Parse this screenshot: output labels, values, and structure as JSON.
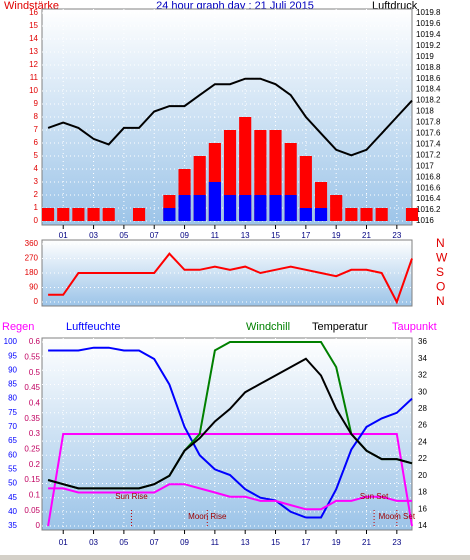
{
  "chart_data": [
    {
      "type": "line",
      "title": "24 hour graph day : 21 Juli 2015",
      "ylabel": "Windstärke",
      "y2label": "Luftdruck",
      "x": [
        0,
        1,
        2,
        3,
        4,
        5,
        6,
        7,
        8,
        9,
        10,
        11,
        12,
        13,
        14,
        15,
        16,
        17,
        18,
        19,
        20,
        21,
        22,
        23,
        24
      ],
      "xlim": [
        -0.4,
        24
      ],
      "xticks": [
        {
          "value": 1,
          "label": "01"
        },
        {
          "value": 3,
          "label": "03"
        },
        {
          "value": 5,
          "label": "05"
        },
        {
          "value": 7,
          "label": "07"
        },
        {
          "value": 9,
          "label": "09"
        },
        {
          "value": 11,
          "label": "11"
        },
        {
          "value": 13,
          "label": "13"
        },
        {
          "value": 15,
          "label": "15"
        },
        {
          "value": 17,
          "label": "17"
        },
        {
          "value": 19,
          "label": "19"
        },
        {
          "value": 21,
          "label": "21"
        },
        {
          "value": 23,
          "label": "23"
        }
      ],
      "ylim": [
        0,
        16
      ],
      "yticks": [
        0,
        1,
        2,
        3,
        4,
        5,
        6,
        7,
        8,
        9,
        10,
        11,
        12,
        13,
        14,
        15,
        16
      ],
      "ytick_color": "#e00000",
      "y2lim": [
        1016,
        1019.8
      ],
      "y2ticks": [
        1016,
        1016.2,
        1016.4,
        1016.6,
        1016.8,
        1017,
        1017.2,
        1017.4,
        1017.6,
        1017.8,
        1018,
        1018.2,
        1018.4,
        1018.6,
        1018.8,
        1019,
        1019.2,
        1019.4,
        1019.6,
        1019.8
      ],
      "y2tick_color": "#000000",
      "grid": true,
      "series": [
        {
          "kind": "bar",
          "color": "#ff0000",
          "axis": "y",
          "values": [
            1,
            1,
            1,
            1,
            1,
            0,
            1,
            0,
            2,
            4,
            5,
            6,
            7,
            8,
            7,
            7,
            6,
            5,
            3,
            2,
            1,
            1,
            1,
            0,
            1
          ]
        },
        {
          "kind": "bar",
          "color": "#0000ff",
          "axis": "y",
          "values": [
            0,
            0,
            0,
            0,
            0,
            0,
            0,
            0,
            1,
            2,
            2,
            3,
            2,
            2,
            2,
            2,
            2,
            1,
            1,
            0,
            0,
            0,
            0,
            0,
            0
          ]
        },
        {
          "kind": "line",
          "color": "#000000",
          "axis": "y2",
          "values": [
            1017.7,
            1017.8,
            1017.7,
            1017.5,
            1017.4,
            1017.7,
            1017.7,
            1018.0,
            1018.1,
            1018.1,
            1018.3,
            1018.5,
            1018.5,
            1018.6,
            1018.6,
            1018.5,
            1018.3,
            1017.9,
            1017.6,
            1017.3,
            1017.2,
            1017.3,
            1017.6,
            1017.9,
            1018.2
          ]
        }
      ]
    },
    {
      "type": "line",
      "x": [
        0,
        1,
        2,
        3,
        4,
        5,
        6,
        7,
        8,
        9,
        10,
        11,
        12,
        13,
        14,
        15,
        16,
        17,
        18,
        19,
        20,
        21,
        22,
        23,
        24
      ],
      "xlim": [
        -0.4,
        24
      ],
      "ylim": [
        0,
        360
      ],
      "yticks": [
        0,
        90,
        180,
        270,
        360
      ],
      "ytick_color": "#e00000",
      "y2lim": [
        0,
        360
      ],
      "y2ticks": [
        {
          "value": 0,
          "label": "N"
        },
        {
          "value": 90,
          "label": "O"
        },
        {
          "value": 180,
          "label": "S"
        },
        {
          "value": 270,
          "label": "W"
        },
        {
          "value": 360,
          "label": "N"
        }
      ],
      "y2tick_color": "#e00000",
      "grid": true,
      "series": [
        {
          "kind": "line",
          "color": "#ff0000",
          "axis": "y",
          "values": [
            45,
            45,
            180,
            180,
            180,
            180,
            180,
            180,
            300,
            200,
            200,
            220,
            200,
            220,
            180,
            200,
            220,
            200,
            180,
            160,
            200,
            200,
            180,
            0,
            270
          ]
        }
      ]
    },
    {
      "type": "line",
      "x": [
        0,
        1,
        2,
        3,
        4,
        5,
        6,
        7,
        8,
        9,
        10,
        11,
        12,
        13,
        14,
        15,
        16,
        17,
        18,
        19,
        20,
        21,
        22,
        23,
        24
      ],
      "xlim": [
        -0.4,
        24
      ],
      "xticks": [
        {
          "value": 1,
          "label": "01"
        },
        {
          "value": 3,
          "label": "03"
        },
        {
          "value": 5,
          "label": "05"
        },
        {
          "value": 7,
          "label": "07"
        },
        {
          "value": 9,
          "label": "09"
        },
        {
          "value": 11,
          "label": "11"
        },
        {
          "value": 13,
          "label": "13"
        },
        {
          "value": 15,
          "label": "15"
        },
        {
          "value": 17,
          "label": "17"
        },
        {
          "value": 19,
          "label": "19"
        },
        {
          "value": 21,
          "label": "21"
        },
        {
          "value": 23,
          "label": "23"
        }
      ],
      "ylim": [
        35,
        100
      ],
      "yticks": [
        35,
        40,
        45,
        50,
        55,
        60,
        65,
        70,
        75,
        80,
        85,
        90,
        95,
        100
      ],
      "ytick_color": "#0000ff",
      "y2lim": [
        0,
        0.6
      ],
      "y2ticks": [
        0,
        0.05,
        0.1,
        0.15,
        0.2,
        0.25,
        0.3,
        0.35,
        0.4,
        0.45,
        0.5,
        0.55,
        0.6
      ],
      "y2tick_color": "#c00060",
      "y3lim": [
        14,
        36
      ],
      "y3ticks": [
        14,
        16,
        18,
        20,
        22,
        24,
        26,
        28,
        30,
        32,
        34,
        36
      ],
      "y3tick_color": "#000000",
      "grid": true,
      "series": [
        {
          "name": "Regen",
          "kind": "line",
          "color": "#ff00ff",
          "axis": "y2",
          "values": [
            0,
            0.3,
            0.3,
            0.3,
            0.3,
            0.3,
            0.3,
            0.3,
            0.3,
            0.3,
            0.3,
            0.3,
            0.3,
            0.3,
            0.3,
            0.3,
            0.3,
            0.3,
            0.3,
            0.3,
            0.3,
            0.3,
            0.3,
            0.3,
            0
          ]
        },
        {
          "name": "Luftfeuchte",
          "kind": "line",
          "color": "#0000ff",
          "axis": "y",
          "values": [
            97,
            97,
            97,
            98,
            98,
            97,
            97,
            94,
            85,
            70,
            60,
            55,
            53,
            48,
            45,
            44,
            40,
            38,
            38,
            48,
            62,
            70,
            73,
            75,
            80
          ]
        },
        {
          "name": "Windchill",
          "kind": "line",
          "color": "#008000",
          "axis": "y3",
          "values": [
            19.5,
            19,
            18.5,
            18.5,
            18.5,
            18.5,
            18.5,
            19,
            20,
            23,
            25,
            35,
            36,
            36,
            36,
            36,
            36,
            36,
            36,
            33,
            25,
            23,
            22,
            22,
            21.5
          ]
        },
        {
          "name": "Temperatur",
          "kind": "line",
          "color": "#000000",
          "axis": "y3",
          "values": [
            19.5,
            19,
            18.5,
            18.5,
            18.5,
            18.5,
            18.5,
            19,
            20,
            23,
            24.5,
            26.5,
            28,
            30,
            31,
            32,
            33,
            34,
            32,
            28,
            25,
            23,
            22,
            22,
            21.5
          ]
        },
        {
          "name": "Taupunkt",
          "kind": "line",
          "color": "#ff00ff",
          "axis": "y3",
          "values": [
            18.5,
            18.5,
            18,
            18,
            18,
            18,
            18,
            18,
            19,
            19,
            18.5,
            18,
            17.5,
            17.5,
            17,
            17,
            16.5,
            16,
            16,
            17,
            17,
            17.5,
            17.5,
            17,
            17
          ]
        }
      ],
      "annotations": [
        {
          "label": "Sun Rise",
          "x": 5.5
        },
        {
          "label": "Moon Rise",
          "x": 10.5
        },
        {
          "label": "Sun Set",
          "x": 21.5
        },
        {
          "label": "Moom Set",
          "x": 23
        }
      ]
    }
  ]
}
